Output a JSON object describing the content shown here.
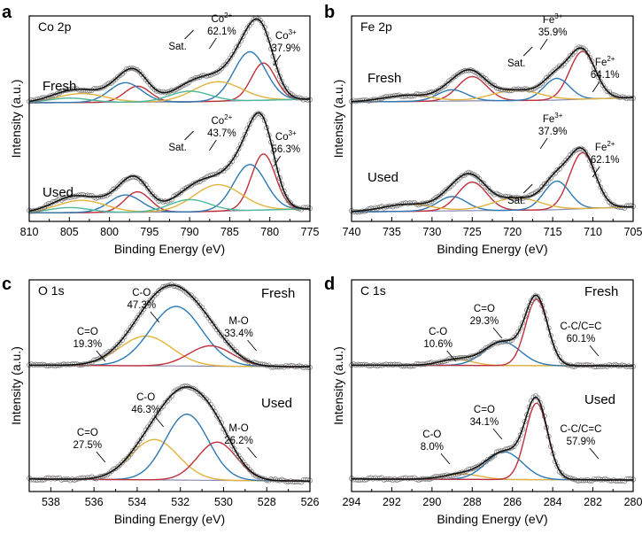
{
  "chart_data": [
    {
      "type": "line",
      "panel": "a",
      "title": "Co 2p",
      "xlabel": "Binding Energy (eV)",
      "ylabel": "Intensity (a.u.)",
      "xlim": [
        810,
        775
      ],
      "xticks": [
        810,
        805,
        800,
        795,
        790,
        785,
        780,
        775
      ],
      "spectra": [
        {
          "condition": "Fresh",
          "annotations": [
            {
              "text": "Sat.",
              "x": 791.5
            },
            {
              "species": "Co",
              "charge": "2+",
              "percent": "62.1%",
              "x": 786
            },
            {
              "species": "Co",
              "charge": "3+",
              "percent": "37.9%",
              "x": 778
            }
          ],
          "background": [
            [
              810,
              0.04
            ],
            [
              790,
              0.05
            ],
            [
              775,
              0.08
            ]
          ],
          "series": [
            {
              "name": "Co3+",
              "color": "#c0303a",
              "peaks": [
                {
                  "center": 780.8,
                  "height": 0.42,
                  "width": 1.5
                },
                {
                  "center": 796.5,
                  "height": 0.18,
                  "width": 1.6
                }
              ]
            },
            {
              "name": "Co2+",
              "color": "#2b78b4",
              "peaks": [
                {
                  "center": 782.5,
                  "height": 0.55,
                  "width": 2.0
                },
                {
                  "center": 798.0,
                  "height": 0.22,
                  "width": 2.0
                }
              ]
            },
            {
              "name": "Sat. 1",
              "color": "#e3b23c",
              "peaks": [
                {
                  "center": 786.5,
                  "height": 0.22,
                  "width": 3.0
                },
                {
                  "center": 803.5,
                  "height": 0.1,
                  "width": 3.0
                }
              ]
            },
            {
              "name": "Sat. 2",
              "color": "#4cb89a",
              "peaks": [
                {
                  "center": 790.0,
                  "height": 0.12,
                  "width": 2.5
                },
                {
                  "center": 805.0,
                  "height": 0.05,
                  "width": 2.5
                }
              ]
            }
          ]
        },
        {
          "condition": "Used",
          "annotations": [
            {
              "text": "Sat.",
              "x": 791.5
            },
            {
              "species": "Co",
              "charge": "2+",
              "percent": "43.7%",
              "x": 786
            },
            {
              "species": "Co",
              "charge": "3+",
              "percent": "56.3%",
              "x": 778
            }
          ],
          "background": [
            [
              810,
              0.04
            ],
            [
              790,
              0.05
            ],
            [
              775,
              0.08
            ]
          ],
          "series": [
            {
              "name": "Co3+",
              "color": "#c0303a",
              "peaks": [
                {
                  "center": 780.8,
                  "height": 0.55,
                  "width": 1.5
                },
                {
                  "center": 796.5,
                  "height": 0.2,
                  "width": 1.6
                }
              ]
            },
            {
              "name": "Co2+",
              "color": "#2b78b4",
              "peaks": [
                {
                  "center": 782.5,
                  "height": 0.45,
                  "width": 2.0
                },
                {
                  "center": 798.0,
                  "height": 0.17,
                  "width": 2.0
                }
              ]
            },
            {
              "name": "Sat. 1",
              "color": "#e3b23c",
              "peaks": [
                {
                  "center": 786.5,
                  "height": 0.26,
                  "width": 3.0
                },
                {
                  "center": 803.5,
                  "height": 0.12,
                  "width": 3.0
                }
              ]
            },
            {
              "name": "Sat. 2",
              "color": "#4cb89a",
              "peaks": [
                {
                  "center": 790.0,
                  "height": 0.12,
                  "width": 2.5
                },
                {
                  "center": 805.0,
                  "height": 0.05,
                  "width": 2.5
                }
              ]
            }
          ]
        }
      ]
    },
    {
      "type": "line",
      "panel": "b",
      "title": "Fe 2p",
      "xlabel": "Binding Energy (eV)",
      "ylabel": "Intensity (a.u.)",
      "xlim": [
        740,
        705
      ],
      "xticks": [
        740,
        735,
        730,
        725,
        720,
        715,
        710,
        705
      ],
      "spectra": [
        {
          "condition": "Fresh",
          "annotations": [
            {
              "text": "Sat.",
              "x": 719.5
            },
            {
              "species": "Fe",
              "charge": "3+",
              "percent": "35.9%",
              "x": 715
            },
            {
              "species": "Fe",
              "charge": "2+",
              "percent": "64.1%",
              "x": 708.5
            }
          ],
          "background": [
            [
              740,
              0.05
            ],
            [
              715,
              0.07
            ],
            [
              705,
              0.1
            ]
          ],
          "series": [
            {
              "name": "Fe2+",
              "color": "#c0303a",
              "peaks": [
                {
                  "center": 711.3,
                  "height": 0.55,
                  "width": 1.6
                },
                {
                  "center": 725.0,
                  "height": 0.28,
                  "width": 1.8
                }
              ]
            },
            {
              "name": "Fe3+",
              "color": "#2b78b4",
              "peaks": [
                {
                  "center": 714.5,
                  "height": 0.25,
                  "width": 1.6
                },
                {
                  "center": 727.5,
                  "height": 0.13,
                  "width": 1.8
                }
              ]
            },
            {
              "name": "Sat.",
              "color": "#e3b23c",
              "peaks": [
                {
                  "center": 719.5,
                  "height": 0.12,
                  "width": 3.0
                },
                {
                  "center": 733.0,
                  "height": 0.07,
                  "width": 3.0
                }
              ]
            }
          ]
        },
        {
          "condition": "Used",
          "annotations": [
            {
              "text": "Sat.",
              "x": 719.5
            },
            {
              "species": "Fe",
              "charge": "3+",
              "percent": "37.9%",
              "x": 715
            },
            {
              "species": "Fe",
              "charge": "2+",
              "percent": "62.1%",
              "x": 708.5
            }
          ],
          "background": [
            [
              740,
              0.05
            ],
            [
              715,
              0.07
            ],
            [
              705,
              0.1
            ]
          ],
          "series": [
            {
              "name": "Fe2+",
              "color": "#c0303a",
              "peaks": [
                {
                  "center": 711.3,
                  "height": 0.55,
                  "width": 1.6
                },
                {
                  "center": 725.0,
                  "height": 0.28,
                  "width": 1.8
                }
              ]
            },
            {
              "name": "Fe3+",
              "color": "#2b78b4",
              "peaks": [
                {
                  "center": 714.5,
                  "height": 0.28,
                  "width": 1.6
                },
                {
                  "center": 727.5,
                  "height": 0.14,
                  "width": 1.8
                }
              ]
            },
            {
              "name": "Sat.",
              "color": "#e3b23c",
              "peaks": [
                {
                  "center": 719.5,
                  "height": 0.12,
                  "width": 3.0
                },
                {
                  "center": 733.0,
                  "height": 0.07,
                  "width": 3.0
                }
              ]
            }
          ]
        }
      ]
    },
    {
      "type": "line",
      "panel": "c",
      "title": "O 1s",
      "xlabel": "Binding Energy (eV)",
      "ylabel": "Intensity (a.u.)",
      "xlim": [
        539,
        526
      ],
      "xticks": [
        538,
        536,
        534,
        532,
        530,
        528,
        526
      ],
      "spectra": [
        {
          "condition": "Fresh",
          "annotations": [
            {
              "species": "C=O",
              "percent": "19.3%",
              "x": 536.3
            },
            {
              "species": "C-O",
              "percent": "47.3%",
              "x": 533.8
            },
            {
              "species": "M-O",
              "percent": "33.4%",
              "x": 529.3
            }
          ],
          "background": [
            [
              539,
              0.06
            ],
            [
              526,
              0.04
            ]
          ],
          "series": [
            {
              "name": "C=O",
              "color": "#e3b23c",
              "peaks": [
                {
                  "center": 533.6,
                  "height": 0.35,
                  "width": 1.2
                }
              ]
            },
            {
              "name": "C-O",
              "color": "#2b78b4",
              "peaks": [
                {
                  "center": 532.2,
                  "height": 0.7,
                  "width": 1.2
                }
              ]
            },
            {
              "name": "M-O",
              "color": "#c0303a",
              "peaks": [
                {
                  "center": 530.6,
                  "height": 0.24,
                  "width": 1.0
                }
              ]
            }
          ]
        },
        {
          "condition": "Used",
          "annotations": [
            {
              "species": "C=O",
              "percent": "27.5%",
              "x": 536.3
            },
            {
              "species": "C-O",
              "percent": "46.3%",
              "x": 533.6
            },
            {
              "species": "M-O",
              "percent": "26.2%",
              "x": 529.3
            }
          ],
          "background": [
            [
              539,
              0.06
            ],
            [
              526,
              0.04
            ]
          ],
          "series": [
            {
              "name": "C=O",
              "color": "#e3b23c",
              "peaks": [
                {
                  "center": 533.2,
                  "height": 0.38,
                  "width": 1.1
                }
              ]
            },
            {
              "name": "C-O",
              "color": "#2b78b4",
              "peaks": [
                {
                  "center": 531.7,
                  "height": 0.62,
                  "width": 1.0
                }
              ]
            },
            {
              "name": "M-O",
              "color": "#c0303a",
              "peaks": [
                {
                  "center": 530.3,
                  "height": 0.36,
                  "width": 0.9
                }
              ]
            }
          ]
        }
      ]
    },
    {
      "type": "line",
      "panel": "d",
      "title": "C 1s",
      "xlabel": "Binding Energy (eV)",
      "ylabel": "Intensity (a.u.)",
      "xlim": [
        294,
        280
      ],
      "xticks": [
        294,
        292,
        290,
        288,
        286,
        284,
        282,
        280
      ],
      "spectra": [
        {
          "condition": "Fresh",
          "annotations": [
            {
              "species": "C-O",
              "percent": "10.6%",
              "x": 289.7
            },
            {
              "species": "C=O",
              "percent": "29.3%",
              "x": 287.4
            },
            {
              "species": "C-C/C=C",
              "percent": "60.1%",
              "x": 282.6
            }
          ],
          "background": [
            [
              294,
              0.06
            ],
            [
              280,
              0.05
            ]
          ],
          "series": [
            {
              "name": "C-O",
              "color": "#e3b23c",
              "peaks": [
                {
                  "center": 288.8,
                  "height": 0.07,
                  "width": 0.8
                }
              ]
            },
            {
              "name": "C=O",
              "color": "#2b78b4",
              "peaks": [
                {
                  "center": 286.5,
                  "height": 0.28,
                  "width": 0.9
                }
              ]
            },
            {
              "name": "C-C/C=C",
              "color": "#c0303a",
              "peaks": [
                {
                  "center": 284.8,
                  "height": 0.78,
                  "width": 0.55
                }
              ]
            }
          ]
        },
        {
          "condition": "Used",
          "annotations": [
            {
              "species": "C-O",
              "percent": "8.0%",
              "x": 290.0
            },
            {
              "species": "C=O",
              "percent": "34.1%",
              "x": 287.4
            },
            {
              "species": "C-C/C=C",
              "percent": "57.9%",
              "x": 282.6
            }
          ],
          "background": [
            [
              294,
              0.06
            ],
            [
              280,
              0.05
            ]
          ],
          "series": [
            {
              "name": "C-O",
              "color": "#e3b23c",
              "peaks": [
                {
                  "center": 288.5,
                  "height": 0.05,
                  "width": 0.9
                }
              ]
            },
            {
              "name": "C=O",
              "color": "#2b78b4",
              "peaks": [
                {
                  "center": 286.4,
                  "height": 0.26,
                  "width": 0.9
                }
              ]
            },
            {
              "name": "C-C/C=C",
              "color": "#c0303a",
              "peaks": [
                {
                  "center": 284.8,
                  "height": 0.72,
                  "width": 0.55
                }
              ]
            }
          ]
        }
      ]
    }
  ],
  "colors": {
    "envelope": "#111111",
    "background_line": "#8a8ab0",
    "data_markers": "#7a7a7a"
  }
}
